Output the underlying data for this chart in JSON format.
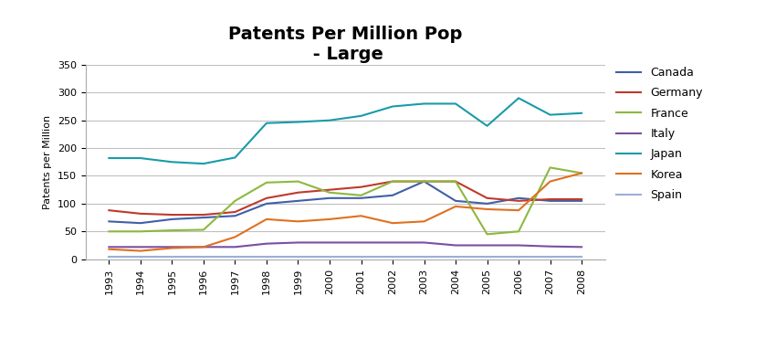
{
  "title": "Patents Per Million Pop\n - Large",
  "ylabel": "Patents per Million",
  "years": [
    1993,
    1994,
    1995,
    1996,
    1997,
    1998,
    1999,
    2000,
    2001,
    2002,
    2003,
    2004,
    2005,
    2006,
    2007,
    2008
  ],
  "series": {
    "Canada": {
      "color": "#3f5fa8",
      "values": [
        68,
        65,
        72,
        75,
        78,
        100,
        105,
        110,
        110,
        115,
        140,
        105,
        100,
        110,
        105,
        105
      ]
    },
    "Germany": {
      "color": "#c0392b",
      "values": [
        88,
        82,
        80,
        80,
        85,
        110,
        120,
        125,
        130,
        140,
        140,
        140,
        110,
        105,
        108,
        108
      ]
    },
    "France": {
      "color": "#8db83e",
      "values": [
        50,
        50,
        52,
        53,
        105,
        138,
        140,
        120,
        115,
        140,
        140,
        140,
        45,
        50,
        165,
        155
      ]
    },
    "Italy": {
      "color": "#7b4fa0",
      "values": [
        22,
        22,
        22,
        22,
        22,
        28,
        30,
        30,
        30,
        30,
        30,
        25,
        25,
        25,
        23,
        22
      ]
    },
    "Japan": {
      "color": "#1a9ba8",
      "values": [
        182,
        182,
        175,
        172,
        183,
        245,
        247,
        250,
        258,
        275,
        280,
        280,
        240,
        290,
        260,
        263
      ]
    },
    "Korea": {
      "color": "#e07020",
      "values": [
        18,
        15,
        20,
        22,
        40,
        72,
        68,
        72,
        78,
        65,
        68,
        95,
        90,
        88,
        140,
        155
      ]
    },
    "Spain": {
      "color": "#9bafd8",
      "values": [
        5,
        5,
        5,
        5,
        5,
        5,
        5,
        5,
        5,
        5,
        5,
        5,
        5,
        5,
        5,
        5
      ]
    }
  },
  "ylim": [
    0,
    350
  ],
  "yticks": [
    0,
    50,
    100,
    150,
    200,
    250,
    300,
    350
  ],
  "background_color": "#ffffff",
  "grid_color": "#c0c0c0",
  "title_fontsize": 14,
  "ylabel_fontsize": 8,
  "tick_fontsize": 8,
  "legend_fontsize": 9
}
